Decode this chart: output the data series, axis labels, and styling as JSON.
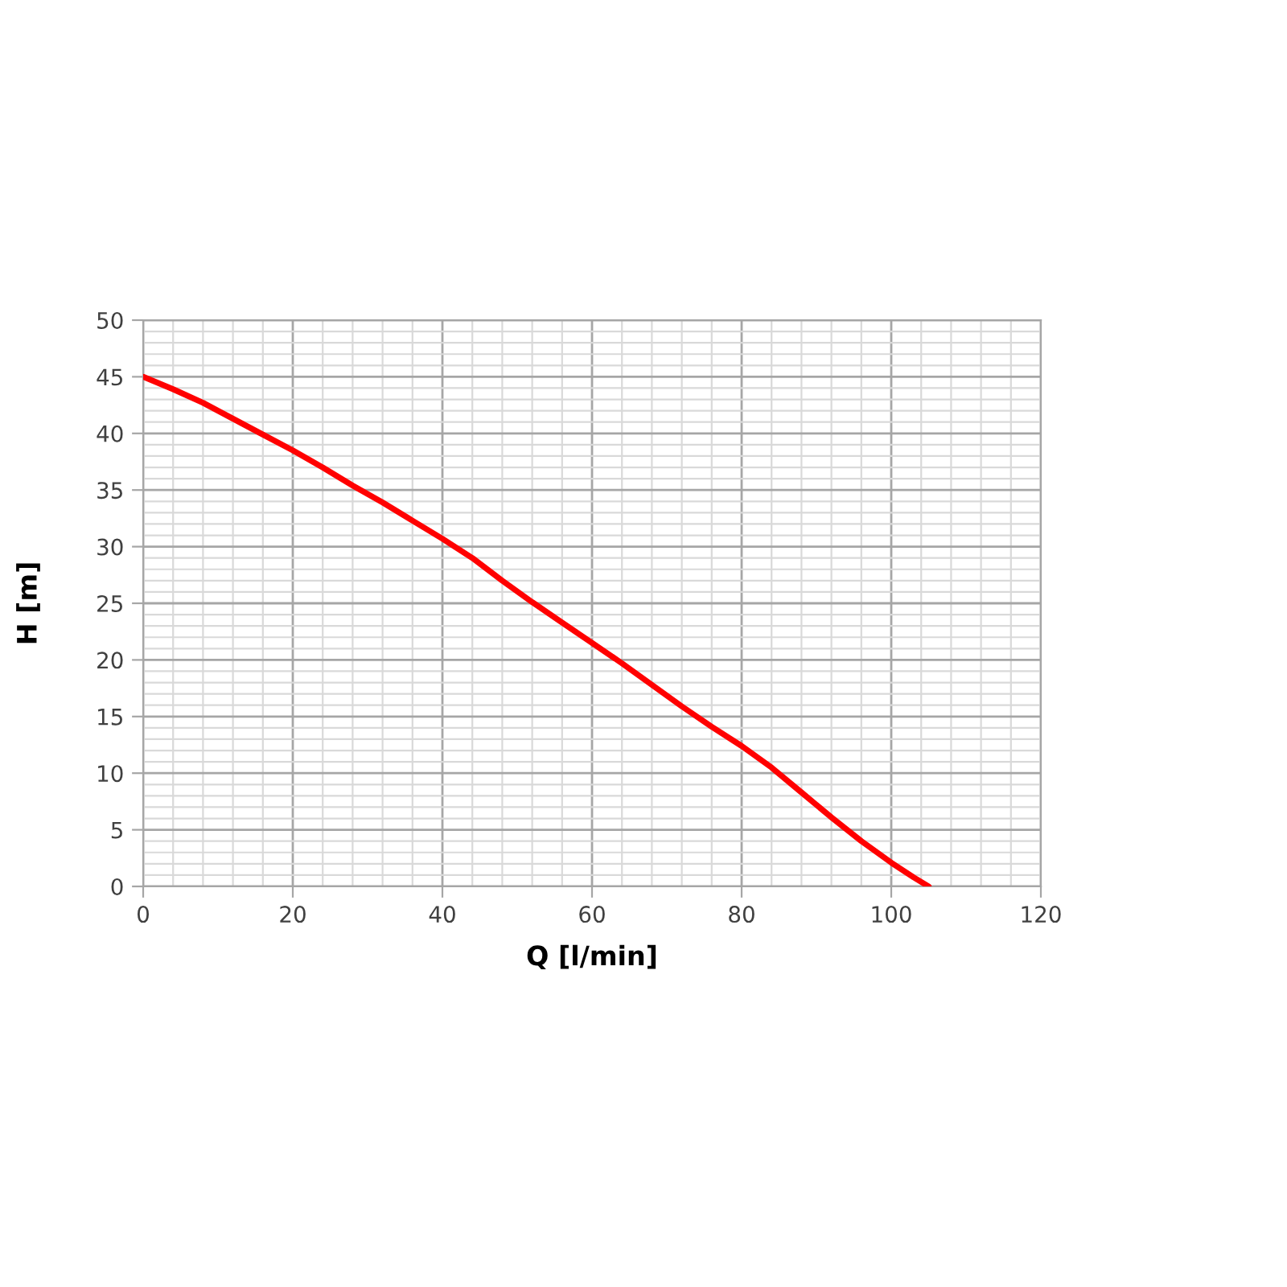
{
  "chart_data": {
    "type": "line",
    "xlabel": "Q [l/min]",
    "ylabel": "H [m]",
    "x": [
      0,
      4,
      8,
      12,
      16,
      20,
      24,
      28,
      32,
      36,
      40,
      44,
      48,
      52,
      56,
      60,
      64,
      68,
      72,
      76,
      80,
      84,
      88,
      92,
      96,
      100,
      103,
      105
    ],
    "series": [
      {
        "color": "#ff0000",
        "values": [
          45,
          43.9,
          42.7,
          41.3,
          39.9,
          38.5,
          37.0,
          35.4,
          33.9,
          32.3,
          30.7,
          29.0,
          27.0,
          25.1,
          23.3,
          21.5,
          19.7,
          17.8,
          15.9,
          14.1,
          12.4,
          10.5,
          8.3,
          6.1,
          4.0,
          2.1,
          0.8,
          0
        ]
      }
    ],
    "xlim": [
      0,
      120
    ],
    "xticks": [
      0,
      20,
      40,
      60,
      80,
      100,
      120
    ],
    "ylim": [
      0,
      50
    ],
    "yticks": [
      0,
      5,
      10,
      15,
      20,
      25,
      30,
      35,
      40,
      45,
      50
    ],
    "grid": true,
    "line_style": "solid"
  }
}
